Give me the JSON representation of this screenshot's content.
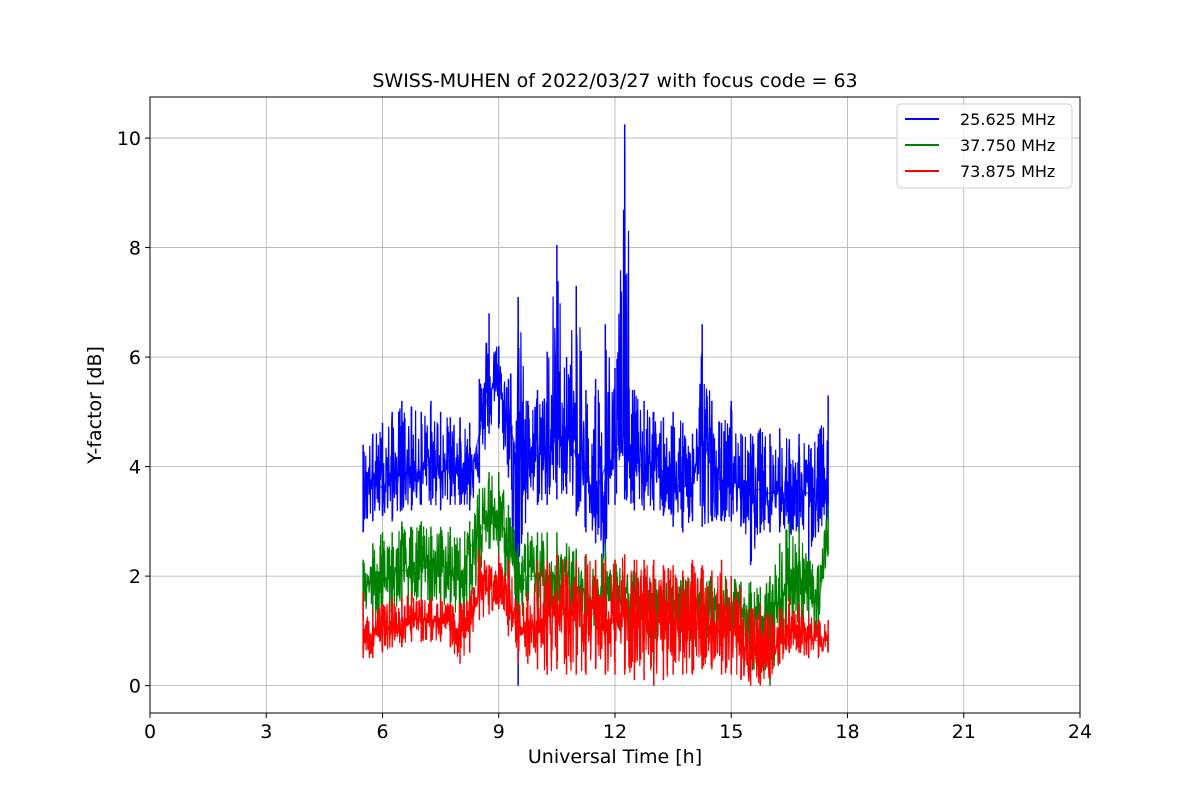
{
  "chart_data": {
    "type": "line",
    "title": "SWISS-MUHEN of 2022/03/27 with focus code = 63",
    "xlabel": "Universal Time [h]",
    "ylabel": "Y-factor [dB]",
    "xlim": [
      0,
      24
    ],
    "ylim": [
      -0.5,
      10.75
    ],
    "xticks": [
      0,
      3,
      6,
      9,
      12,
      15,
      18,
      21,
      24
    ],
    "yticks": [
      0,
      2,
      4,
      6,
      8,
      10
    ],
    "grid": true,
    "legend_position": "upper-right",
    "series": [
      {
        "name": "25.625 MHz",
        "color": "#0000ff",
        "x": [
          5.5,
          5.75,
          6.0,
          6.25,
          6.5,
          6.75,
          7.0,
          7.25,
          7.5,
          7.75,
          8.0,
          8.25,
          8.5,
          8.75,
          9.0,
          9.25,
          9.5,
          9.75,
          10.0,
          10.25,
          10.5,
          10.75,
          11.0,
          11.25,
          11.5,
          11.75,
          12.0,
          12.25,
          12.5,
          12.75,
          13.0,
          13.25,
          13.5,
          13.75,
          14.0,
          14.25,
          14.5,
          14.75,
          15.0,
          15.25,
          15.5,
          15.75,
          16.0,
          16.25,
          16.5,
          16.75,
          17.0,
          17.25,
          17.5
        ],
        "values": [
          3.6,
          3.8,
          3.6,
          3.9,
          3.8,
          4.0,
          3.9,
          4.1,
          3.9,
          4.0,
          4.0,
          3.8,
          4.6,
          5.4,
          5.5,
          4.8,
          4.2,
          4.1,
          4.2,
          4.3,
          4.5,
          4.6,
          4.2,
          3.8,
          3.5,
          4.0,
          4.2,
          4.6,
          4.1,
          4.0,
          4.1,
          3.9,
          3.7,
          3.6,
          3.8,
          4.5,
          4.0,
          3.7,
          3.8,
          3.6,
          3.5,
          3.6,
          3.5,
          3.6,
          3.4,
          3.6,
          3.5,
          3.5,
          3.8
        ],
        "upper": [
          4.4,
          4.6,
          4.8,
          5.0,
          5.2,
          5.1,
          5.0,
          5.2,
          5.0,
          4.9,
          4.9,
          4.8,
          5.6,
          6.8,
          6.2,
          5.6,
          7.1,
          5.2,
          5.4,
          6.1,
          8.05,
          6.0,
          7.3,
          5.4,
          5.6,
          6.6,
          5.8,
          10.25,
          5.4,
          5.2,
          5.0,
          4.9,
          5.0,
          4.8,
          4.6,
          6.6,
          5.2,
          4.8,
          5.2,
          4.6,
          4.6,
          4.7,
          4.6,
          4.7,
          4.5,
          4.6,
          4.4,
          4.6,
          5.3
        ],
        "lower": [
          2.8,
          3.0,
          3.1,
          3.0,
          3.2,
          3.2,
          3.3,
          3.3,
          3.2,
          3.3,
          3.3,
          3.2,
          3.7,
          4.6,
          4.7,
          3.8,
          0.0,
          3.4,
          3.3,
          3.3,
          3.4,
          3.5,
          3.1,
          2.8,
          2.6,
          1.9,
          3.3,
          3.4,
          3.2,
          3.2,
          3.2,
          3.1,
          2.9,
          2.8,
          3.0,
          2.9,
          3.0,
          3.0,
          3.0,
          2.9,
          2.2,
          2.8,
          2.8,
          2.8,
          2.7,
          2.8,
          2.2,
          2.8,
          3.0
        ]
      },
      {
        "name": "37.750 MHz",
        "color": "#008000",
        "x": [
          5.5,
          5.75,
          6.0,
          6.25,
          6.5,
          6.75,
          7.0,
          7.25,
          7.5,
          7.75,
          8.0,
          8.25,
          8.5,
          8.75,
          9.0,
          9.25,
          9.5,
          9.75,
          10.0,
          10.25,
          10.5,
          10.75,
          11.0,
          11.25,
          11.5,
          11.75,
          12.0,
          12.25,
          12.5,
          12.75,
          13.0,
          13.25,
          13.5,
          13.75,
          14.0,
          14.25,
          14.5,
          14.75,
          15.0,
          15.25,
          15.5,
          15.75,
          16.0,
          16.25,
          16.5,
          16.75,
          17.0,
          17.25,
          17.5
        ],
        "values": [
          1.8,
          1.9,
          1.9,
          2.0,
          2.1,
          2.1,
          2.2,
          2.1,
          2.2,
          2.1,
          1.9,
          2.5,
          2.8,
          3.2,
          3.1,
          2.6,
          1.8,
          2.0,
          2.0,
          2.0,
          2.0,
          1.9,
          1.8,
          1.7,
          1.5,
          1.7,
          1.6,
          1.5,
          1.5,
          1.5,
          1.4,
          1.4,
          1.4,
          1.3,
          1.4,
          1.4,
          1.4,
          1.4,
          1.4,
          1.3,
          1.3,
          1.2,
          1.4,
          1.5,
          2.0,
          2.0,
          1.6,
          1.5,
          2.7
        ],
        "upper": [
          2.3,
          2.6,
          2.8,
          2.8,
          3.0,
          2.9,
          3.0,
          2.9,
          2.9,
          2.9,
          2.7,
          3.0,
          3.6,
          3.9,
          3.9,
          3.3,
          2.6,
          2.8,
          2.8,
          2.8,
          2.8,
          2.6,
          2.5,
          2.4,
          2.2,
          2.6,
          2.3,
          2.2,
          2.1,
          2.1,
          2.0,
          2.0,
          2.0,
          2.0,
          2.0,
          2.0,
          2.0,
          2.0,
          2.0,
          1.9,
          1.9,
          1.8,
          2.0,
          2.6,
          3.0,
          2.9,
          2.3,
          2.2,
          3.3
        ],
        "lower": [
          1.2,
          1.2,
          1.2,
          1.3,
          1.4,
          1.4,
          1.5,
          1.4,
          1.5,
          1.4,
          1.2,
          1.5,
          2.0,
          2.5,
          2.4,
          1.6,
          1.0,
          1.2,
          1.2,
          1.2,
          1.2,
          1.2,
          1.1,
          1.0,
          0.9,
          1.0,
          0.9,
          0.9,
          0.8,
          0.8,
          0.8,
          0.8,
          0.8,
          0.7,
          0.8,
          0.8,
          0.8,
          0.8,
          0.7,
          0.6,
          0.3,
          0.1,
          0.0,
          0.4,
          1.0,
          1.0,
          0.8,
          0.9,
          2.4
        ]
      },
      {
        "name": "73.875 MHz",
        "color": "#ff0000",
        "x": [
          5.5,
          5.75,
          6.0,
          6.25,
          6.5,
          6.75,
          7.0,
          7.25,
          7.5,
          7.75,
          8.0,
          8.25,
          8.5,
          8.75,
          9.0,
          9.25,
          9.5,
          9.75,
          10.0,
          10.25,
          10.5,
          10.75,
          11.0,
          11.25,
          11.5,
          11.75,
          12.0,
          12.25,
          12.5,
          12.75,
          13.0,
          13.25,
          13.5,
          13.75,
          14.0,
          14.25,
          14.5,
          14.75,
          15.0,
          15.25,
          15.5,
          15.75,
          16.0,
          16.25,
          16.5,
          16.75,
          17.0,
          17.25,
          17.5
        ],
        "values": [
          0.9,
          0.9,
          1.0,
          1.1,
          1.1,
          1.2,
          1.2,
          1.2,
          1.2,
          1.1,
          1.0,
          1.1,
          1.7,
          1.8,
          1.9,
          1.6,
          0.9,
          1.0,
          1.1,
          1.3,
          1.3,
          1.3,
          1.3,
          1.3,
          1.3,
          1.2,
          1.2,
          1.3,
          1.2,
          1.2,
          1.2,
          1.2,
          1.2,
          1.1,
          1.2,
          1.1,
          1.1,
          1.1,
          1.0,
          0.8,
          0.5,
          0.5,
          0.6,
          0.8,
          1.0,
          1.0,
          0.9,
          0.8,
          0.9
        ],
        "upper": [
          1.7,
          1.4,
          1.5,
          1.6,
          1.6,
          1.7,
          1.6,
          1.6,
          1.6,
          1.5,
          1.5,
          1.6,
          2.5,
          2.2,
          2.4,
          2.3,
          1.5,
          1.7,
          2.3,
          2.3,
          2.4,
          2.3,
          2.3,
          2.4,
          2.3,
          2.3,
          2.3,
          2.4,
          2.3,
          2.3,
          2.3,
          2.2,
          2.2,
          2.1,
          2.3,
          2.2,
          2.1,
          2.3,
          2.0,
          1.8,
          1.4,
          1.5,
          1.3,
          1.4,
          1.6,
          1.5,
          1.3,
          1.2,
          1.2
        ],
        "lower": [
          0.5,
          0.5,
          0.6,
          0.7,
          0.7,
          0.8,
          0.8,
          0.8,
          0.8,
          0.7,
          0.4,
          0.6,
          1.2,
          1.3,
          1.4,
          0.9,
          0.4,
          0.4,
          0.3,
          0.2,
          0.3,
          0.2,
          0.2,
          0.2,
          0.3,
          0.2,
          0.2,
          0.2,
          0.1,
          0.1,
          0.0,
          0.1,
          0.2,
          0.2,
          0.2,
          0.3,
          0.3,
          0.2,
          0.2,
          0.1,
          0.0,
          0.0,
          0.1,
          0.4,
          0.6,
          0.6,
          0.5,
          0.5,
          0.6
        ]
      }
    ]
  }
}
